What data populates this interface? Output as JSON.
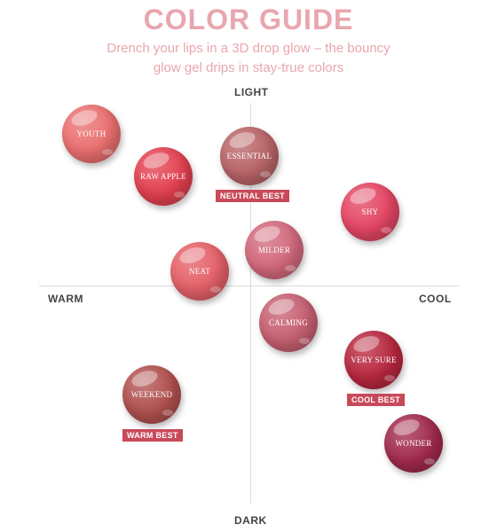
{
  "title": "COLOR GUIDE",
  "subtitle": [
    "Drench your lips in a 3D drop glow – the bouncy",
    "glow gel drips in stay-true colors"
  ],
  "axes": {
    "top": "LIGHT",
    "bottom": "DARK",
    "left": "WARM",
    "right": "COOL"
  },
  "shades": [
    {
      "name": "YOUTH",
      "color": "#ea6f6f"
    },
    {
      "name": "RAW APPLE",
      "color": "#e2404f"
    },
    {
      "name": "ESSENTIAL",
      "color": "#b86467"
    },
    {
      "name": "SHY",
      "color": "#e34563"
    },
    {
      "name": "MILDER",
      "color": "#d2697c"
    },
    {
      "name": "NEAT",
      "color": "#e46068"
    },
    {
      "name": "CALMING",
      "color": "#c66072"
    },
    {
      "name": "VERY SURE",
      "color": "#b7273e"
    },
    {
      "name": "WEEKEND",
      "color": "#b0514f"
    },
    {
      "name": "WONDER",
      "color": "#a12a4d"
    }
  ],
  "badges": {
    "neutral": "NEUTRAL BEST",
    "cool": "COOL BEST",
    "warm": "WARM BEST"
  }
}
